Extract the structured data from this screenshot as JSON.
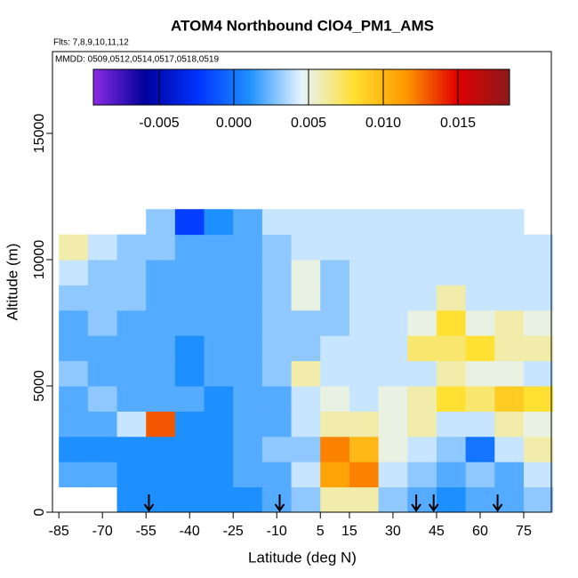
{
  "chart_data": {
    "type": "heatmap",
    "title": "ATOM4 Northbound ClO4_PM1_AMS",
    "subtitle": "Flts: 7,8,9,10,11,12",
    "annotation": "MMDD: 0509,0512,0514,0517,0518,0519",
    "x_label": "Latitude (deg N)",
    "y_label": "Altitude (m)",
    "xlim": [
      -87.2,
      84.5
    ],
    "ylim": [
      0,
      18240
    ],
    "xticks": [
      -85,
      -70,
      -55,
      -40,
      -25,
      -10,
      5,
      15,
      30,
      45,
      60,
      75
    ],
    "yticks": [
      0,
      5000,
      10000,
      15000
    ],
    "x_edges": [
      -85,
      -75,
      -65,
      -55,
      -45,
      -35,
      -25,
      -15,
      -5,
      5,
      15,
      25,
      35,
      45,
      55,
      65,
      75,
      85
    ],
    "y_edges": [
      0,
      1000,
      2000,
      3000,
      4000,
      5000,
      6000,
      7000,
      8000,
      9000,
      10000,
      11000,
      12000
    ],
    "values": [
      [
        null,
        null,
        0.001,
        0.001,
        0.001,
        0.001,
        0.001,
        0.002,
        0.003,
        0.006,
        0.006,
        0.003,
        0.002,
        0.001,
        0.002,
        0.002,
        0.003
      ],
      [
        0.002,
        0.002,
        0.001,
        0.001,
        0.001,
        0.001,
        0.002,
        0.002,
        0.004,
        0.011,
        0.012,
        0.004,
        0.003,
        0.002,
        0.003,
        0.002,
        0.004
      ],
      [
        0.001,
        0.001,
        0.001,
        0.001,
        0.001,
        0.001,
        0.002,
        0.003,
        0.003,
        0.012,
        0.01,
        0.005,
        0.004,
        0.003,
        0.0,
        0.004,
        0.006
      ],
      [
        0.002,
        0.002,
        0.004,
        0.013,
        0.001,
        0.001,
        0.002,
        0.002,
        0.004,
        0.006,
        0.006,
        0.005,
        0.006,
        0.004,
        0.004,
        0.006,
        0.005
      ],
      [
        0.002,
        0.003,
        0.002,
        0.002,
        0.002,
        0.001,
        0.002,
        0.002,
        0.004,
        0.005,
        0.004,
        0.005,
        0.006,
        0.008,
        0.007,
        0.009,
        0.008
      ],
      [
        0.003,
        0.002,
        0.002,
        0.002,
        0.001,
        0.002,
        0.002,
        0.003,
        0.006,
        0.004,
        0.004,
        0.004,
        0.004,
        0.006,
        0.005,
        0.005,
        0.004
      ],
      [
        0.002,
        0.002,
        0.002,
        0.002,
        0.001,
        0.002,
        0.002,
        0.003,
        0.003,
        0.004,
        0.004,
        0.004,
        0.007,
        0.007,
        0.008,
        0.006,
        0.006
      ],
      [
        0.002,
        0.003,
        0.002,
        0.002,
        0.002,
        0.002,
        0.002,
        0.003,
        0.003,
        0.003,
        0.004,
        0.004,
        0.005,
        0.008,
        0.005,
        0.006,
        0.005
      ],
      [
        0.003,
        0.003,
        0.003,
        0.002,
        0.002,
        0.002,
        0.002,
        0.003,
        0.005,
        0.003,
        0.004,
        0.004,
        0.004,
        0.006,
        0.004,
        0.004,
        0.004
      ],
      [
        0.004,
        0.003,
        0.003,
        0.002,
        0.002,
        0.002,
        0.002,
        0.003,
        0.005,
        0.003,
        0.004,
        0.004,
        0.004,
        0.004,
        0.004,
        0.004,
        0.004
      ],
      [
        0.006,
        0.004,
        0.003,
        0.003,
        0.002,
        0.002,
        0.002,
        0.003,
        0.004,
        0.004,
        0.004,
        0.004,
        0.004,
        0.004,
        0.004,
        0.004,
        0.004
      ],
      [
        null,
        null,
        null,
        0.003,
        -0.002,
        0.001,
        0.002,
        0.004,
        0.004,
        0.004,
        0.004,
        0.004,
        0.004,
        0.004,
        0.004,
        0.004,
        null
      ]
    ],
    "clim": [
      -0.0094,
      0.01845
    ],
    "cticks": [
      -0.005,
      {
        "value": 0,
        "label": "0.000"
      },
      0.005,
      {
        "value": 0.01,
        "label": "0.010"
      },
      0.015
    ],
    "colors": [
      "#8a2be2",
      "#00009c",
      "#0032ff",
      "#1e90ff",
      "#e6f4ff",
      "#ffe033",
      "#ff9900",
      "#e00000",
      "#8b1a1a"
    ],
    "arrows_x": [
      -54,
      -9,
      38,
      44,
      66
    ]
  }
}
